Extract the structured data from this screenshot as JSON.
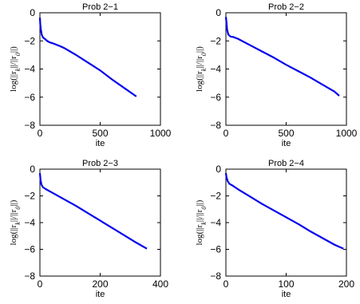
{
  "chart_data": [
    {
      "type": "line",
      "title": "Prob 2−1",
      "xlabel": "ite",
      "ylabel": "log(||r_k||/||r_0||)",
      "xlim": [
        0,
        1000
      ],
      "ylim": [
        -8,
        0
      ],
      "xticks": [
        "0",
        "500",
        "1000"
      ],
      "yticks": [
        "0",
        "−2",
        "−4",
        "−6",
        "−8"
      ],
      "grid": false,
      "color": "#0000ee",
      "x": [
        0,
        3,
        8,
        15,
        25,
        40,
        60,
        80,
        100,
        130,
        160,
        200,
        300,
        400,
        500,
        600,
        700,
        800
      ],
      "y": [
        -0.35,
        -0.8,
        -1.2,
        -1.55,
        -1.75,
        -1.85,
        -2.0,
        -2.1,
        -2.15,
        -2.25,
        -2.35,
        -2.5,
        -3.0,
        -3.55,
        -4.1,
        -4.75,
        -5.35,
        -5.95
      ]
    },
    {
      "type": "line",
      "title": "Prob 2−2",
      "xlabel": "ite",
      "ylabel": "log(||r_k||/||r_0||)",
      "xlim": [
        0,
        1000
      ],
      "ylim": [
        -8,
        0
      ],
      "xticks": [
        "0",
        "500",
        "1000"
      ],
      "yticks": [
        "0",
        "−2",
        "−4",
        "−6",
        "−8"
      ],
      "grid": false,
      "color": "#0000ee",
      "x": [
        0,
        5,
        10,
        20,
        40,
        60,
        100,
        200,
        300,
        400,
        500,
        600,
        700,
        800,
        900,
        940
      ],
      "y": [
        -0.3,
        -0.7,
        -1.2,
        -1.55,
        -1.7,
        -1.72,
        -1.85,
        -2.3,
        -2.75,
        -3.2,
        -3.7,
        -4.15,
        -4.6,
        -5.1,
        -5.6,
        -5.9
      ]
    },
    {
      "type": "line",
      "title": "Prob 2−3",
      "xlabel": "ite",
      "ylabel": "log(||r_k||/||r_0||)",
      "xlim": [
        0,
        400
      ],
      "ylim": [
        -8,
        0
      ],
      "xticks": [
        "0",
        "200",
        "400"
      ],
      "yticks": [
        "0",
        "−2",
        "−4",
        "−6",
        "−8"
      ],
      "grid": false,
      "color": "#0000ee",
      "x": [
        0,
        2,
        5,
        10,
        20,
        40,
        80,
        120,
        160,
        200,
        240,
        280,
        320,
        355
      ],
      "y": [
        -0.3,
        -0.8,
        -1.15,
        -1.35,
        -1.5,
        -1.75,
        -2.25,
        -2.75,
        -3.3,
        -3.85,
        -4.4,
        -4.95,
        -5.5,
        -5.95
      ]
    },
    {
      "type": "line",
      "title": "Prob 2−4",
      "xlabel": "ite",
      "ylabel": "log(||r_k||/||r_0||)",
      "xlim": [
        0,
        200
      ],
      "ylim": [
        -8,
        0
      ],
      "xticks": [
        "0",
        "100",
        "200"
      ],
      "yticks": [
        "0",
        "−2",
        "−4",
        "−6",
        "−8"
      ],
      "grid": false,
      "color": "#0000ee",
      "x": [
        0,
        1,
        3,
        6,
        10,
        20,
        40,
        60,
        80,
        100,
        120,
        140,
        160,
        180,
        195
      ],
      "y": [
        -0.3,
        -0.6,
        -0.9,
        -1.1,
        -1.2,
        -1.5,
        -2.05,
        -2.6,
        -3.1,
        -3.6,
        -4.1,
        -4.65,
        -5.15,
        -5.65,
        -5.95
      ]
    }
  ]
}
